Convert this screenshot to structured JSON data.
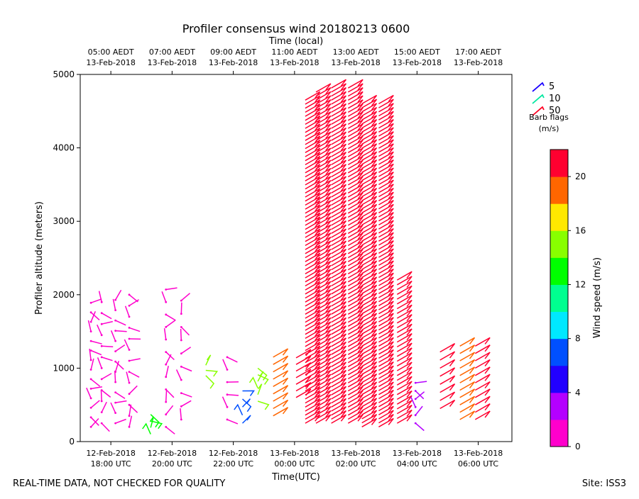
{
  "chart_data": {
    "type": "scatter",
    "title": "Profiler consensus wind 20180213 0600",
    "top_axis_title": "Time (local)",
    "xlabel": "Time(UTC)",
    "ylabel": "Profiler altitude (meters)",
    "xlim": [
      17.0,
      7.1
    ],
    "ylim": [
      0,
      5000
    ],
    "y_ticks": [
      0,
      1000,
      2000,
      3000,
      4000,
      5000
    ],
    "x_ticks_utc": [
      {
        "h": 18,
        "line1": "12-Feb-2018",
        "line2": "18:00 UTC"
      },
      {
        "h": 20,
        "line1": "12-Feb-2018",
        "line2": "20:00 UTC"
      },
      {
        "h": 22,
        "line1": "12-Feb-2018",
        "line2": "22:00 UTC"
      },
      {
        "h": 24,
        "line1": "13-Feb-2018",
        "line2": "00:00 UTC"
      },
      {
        "h": 26,
        "line1": "13-Feb-2018",
        "line2": "02:00 UTC"
      },
      {
        "h": 28,
        "line1": "13-Feb-2018",
        "line2": "04:00 UTC"
      },
      {
        "h": 30,
        "line1": "13-Feb-2018",
        "line2": "06:00 UTC"
      }
    ],
    "x_ticks_local": [
      {
        "h": 18,
        "line1": "05:00 AEDT",
        "line2": "13-Feb-2018"
      },
      {
        "h": 20,
        "line1": "07:00 AEDT",
        "line2": "13-Feb-2018"
      },
      {
        "h": 22,
        "line1": "09:00 AEDT",
        "line2": "13-Feb-2018"
      },
      {
        "h": 24,
        "line1": "11:00 AEDT",
        "line2": "13-Feb-2018"
      },
      {
        "h": 26,
        "line1": "13:00 AEDT",
        "line2": "13-Feb-2018"
      },
      {
        "h": 28,
        "line1": "15:00 AEDT",
        "line2": "13-Feb-2018"
      },
      {
        "h": 30,
        "line1": "17:00 AEDT",
        "line2": "13-Feb-2018"
      }
    ],
    "barb_legend": {
      "title": "Barb flags",
      "units": "(m/s)",
      "entries": [
        {
          "label": "5",
          "color": "#1a00ff"
        },
        {
          "label": "10",
          "color": "#00e8a0"
        },
        {
          "label": "50",
          "color": "#ff0022"
        }
      ]
    },
    "colorbar": {
      "label": "Wind speed (m/s)",
      "range": [
        0,
        22
      ],
      "ticks": [
        "0",
        "4",
        "8",
        "12",
        "16",
        "20"
      ],
      "tick_values": [
        0,
        4,
        8,
        12,
        16,
        20
      ],
      "colors": [
        "#ff00cc",
        "#b400ff",
        "#2200ff",
        "#0050ff",
        "#00e8ff",
        "#00ff90",
        "#00ff00",
        "#88ff00",
        "#ffe800",
        "#ff6600",
        "#ff0030"
      ]
    },
    "barb_columns": [
      {
        "t": 17.35,
        "z_min": 200,
        "z_max": 1950,
        "speed": 1.5,
        "step": 130
      },
      {
        "t": 17.7,
        "z_min": 250,
        "z_max": 1950,
        "speed": 1.5,
        "step": 150
      },
      {
        "t": 18.15,
        "z_min": 250,
        "z_max": 2000,
        "speed": 1.5,
        "step": 140
      },
      {
        "t": 18.6,
        "z_min": 200,
        "z_max": 2100,
        "speed": 1.5,
        "step": 150
      },
      {
        "t": 19.3,
        "z_min": 100,
        "z_max": 400,
        "speed": 13.0,
        "step": 90
      },
      {
        "t": 19.8,
        "z_min": 200,
        "z_max": 2200,
        "speed": 1.5,
        "step": 170
      },
      {
        "t": 20.3,
        "z_min": 300,
        "z_max": 2050,
        "speed": 1.5,
        "step": 180
      },
      {
        "t": 21.1,
        "z_min": 900,
        "z_max": 1050,
        "speed": 14.5,
        "step": 70
      },
      {
        "t": 21.8,
        "z_min": 300,
        "z_max": 1300,
        "speed": 1.5,
        "step": 170
      },
      {
        "t": 22.3,
        "z_min": 250,
        "z_max": 700,
        "speed": 6.5,
        "step": 110
      },
      {
        "t": 22.8,
        "z_min": 550,
        "z_max": 1050,
        "speed": 14.5,
        "step": 90
      },
      {
        "t": 23.3,
        "z_min": 350,
        "z_max": 1200,
        "speed": 18.0,
        "step": 100
      },
      {
        "t": 24.05,
        "z_min": 600,
        "z_max": 1150,
        "speed": 21.0,
        "step": 90
      },
      {
        "t": 24.35,
        "z_min": 250,
        "z_max": 4650,
        "speed": 21.5,
        "step": 55
      },
      {
        "t": 24.7,
        "z_min": 250,
        "z_max": 4800,
        "speed": 21.5,
        "step": 55
      },
      {
        "t": 25.2,
        "z_min": 250,
        "z_max": 4850,
        "speed": 21.5,
        "step": 55
      },
      {
        "t": 25.75,
        "z_min": 250,
        "z_max": 4850,
        "speed": 21.5,
        "step": 55
      },
      {
        "t": 26.2,
        "z_min": 200,
        "z_max": 4600,
        "speed": 21.5,
        "step": 55
      },
      {
        "t": 26.75,
        "z_min": 200,
        "z_max": 4650,
        "speed": 21.5,
        "step": 55
      },
      {
        "t": 27.35,
        "z_min": 250,
        "z_max": 2250,
        "speed": 21.0,
        "step": 65
      },
      {
        "t": 27.95,
        "z_min": 250,
        "z_max": 900,
        "speed": 2.5,
        "step": 110
      },
      {
        "t": 28.75,
        "z_min": 450,
        "z_max": 1300,
        "speed": 20.5,
        "step": 110
      },
      {
        "t": 29.4,
        "z_min": 300,
        "z_max": 1300,
        "speed": 19.0,
        "step": 100
      },
      {
        "t": 29.9,
        "z_min": 300,
        "z_max": 1350,
        "speed": 21.0,
        "step": 100
      }
    ],
    "grid": false,
    "legend_position": "top-right, outside plot",
    "notes": {
      "left": "REAL-TIME DATA, NOT CHECKED FOR QUALITY",
      "right": "Site: ISS3"
    }
  }
}
